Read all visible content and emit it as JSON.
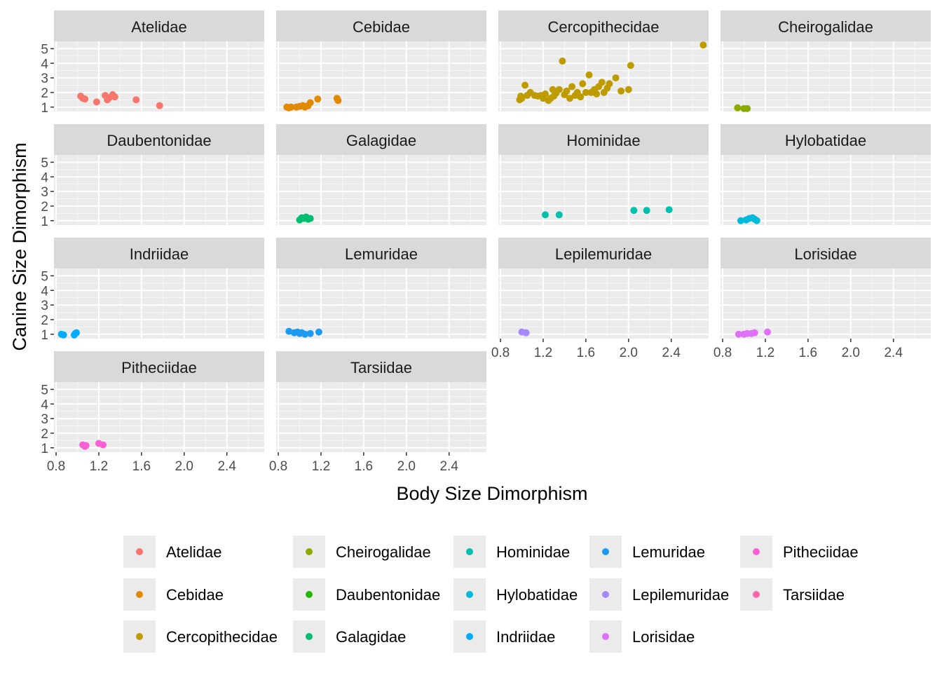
{
  "chart_data": {
    "type": "scatter",
    "facet": "family",
    "xlabel": "Body Size Dimorphism",
    "ylabel": "Canine Size Dimorphism",
    "xlim": [
      0.78,
      2.75
    ],
    "ylim": [
      0.7,
      5.5
    ],
    "x_ticks": [
      0.8,
      1.2,
      1.6,
      2.0,
      2.4
    ],
    "x_tick_labels": [
      "0.8",
      "1.2",
      "1.6",
      "2.0",
      "2.4"
    ],
    "y_ticks": [
      1,
      2,
      3,
      4,
      5
    ],
    "y_tick_labels": [
      "1",
      "2",
      "3",
      "4",
      "5"
    ],
    "grid": true,
    "legend_position": "bottom",
    "series": [
      {
        "name": "Atelidae",
        "color": "#F8766D",
        "points": [
          [
            1.03,
            1.75
          ],
          [
            1.05,
            1.6
          ],
          [
            1.07,
            1.55
          ],
          [
            1.18,
            1.35
          ],
          [
            1.26,
            1.8
          ],
          [
            1.28,
            1.5
          ],
          [
            1.3,
            1.65
          ],
          [
            1.33,
            1.85
          ],
          [
            1.35,
            1.7
          ],
          [
            1.55,
            1.5
          ],
          [
            1.77,
            1.1
          ]
        ]
      },
      {
        "name": "Cebidae",
        "color": "#E18A00",
        "points": [
          [
            0.88,
            1.0
          ],
          [
            0.9,
            0.95
          ],
          [
            0.92,
            1.0
          ],
          [
            0.97,
            1.0
          ],
          [
            1.0,
            1.05
          ],
          [
            1.03,
            1.1
          ],
          [
            1.05,
            1.0
          ],
          [
            1.08,
            1.1
          ],
          [
            1.1,
            1.3
          ],
          [
            1.17,
            1.55
          ],
          [
            1.35,
            1.6
          ],
          [
            1.36,
            1.45
          ]
        ]
      },
      {
        "name": "Cercopithecidae",
        "color": "#BE9C00",
        "points": [
          [
            0.98,
            1.5
          ],
          [
            0.99,
            1.75
          ],
          [
            1.0,
            1.6
          ],
          [
            1.03,
            2.5
          ],
          [
            1.05,
            1.8
          ],
          [
            1.08,
            2.0
          ],
          [
            1.12,
            1.8
          ],
          [
            1.15,
            1.75
          ],
          [
            1.18,
            1.8
          ],
          [
            1.2,
            1.6
          ],
          [
            1.22,
            1.9
          ],
          [
            1.25,
            1.45
          ],
          [
            1.27,
            1.6
          ],
          [
            1.29,
            2.2
          ],
          [
            1.3,
            1.75
          ],
          [
            1.32,
            1.95
          ],
          [
            1.35,
            2.2
          ],
          [
            1.38,
            4.15
          ],
          [
            1.4,
            1.85
          ],
          [
            1.42,
            2.1
          ],
          [
            1.45,
            1.6
          ],
          [
            1.47,
            2.4
          ],
          [
            1.5,
            1.8
          ],
          [
            1.52,
            2.0
          ],
          [
            1.55,
            1.7
          ],
          [
            1.57,
            2.6
          ],
          [
            1.6,
            2.0
          ],
          [
            1.63,
            3.2
          ],
          [
            1.65,
            2.0
          ],
          [
            1.68,
            2.2
          ],
          [
            1.7,
            1.9
          ],
          [
            1.72,
            2.4
          ],
          [
            1.75,
            2.7
          ],
          [
            1.77,
            2.0
          ],
          [
            1.8,
            2.3
          ],
          [
            1.82,
            2.6
          ],
          [
            1.88,
            3.0
          ],
          [
            1.93,
            2.1
          ],
          [
            2.0,
            2.2
          ],
          [
            2.02,
            3.85
          ],
          [
            2.7,
            5.25
          ]
        ]
      },
      {
        "name": "Cheirogalidae",
        "color": "#8CAB00",
        "points": [
          [
            0.94,
            0.95
          ],
          [
            1.0,
            0.9
          ],
          [
            1.03,
            0.9
          ]
        ]
      },
      {
        "name": "Daubentonidae",
        "color": "#24B700",
        "points": []
      },
      {
        "name": "Galagidae",
        "color": "#00BE70",
        "points": [
          [
            1.0,
            1.05
          ],
          [
            1.02,
            1.2
          ],
          [
            1.04,
            1.15
          ],
          [
            1.06,
            1.25
          ],
          [
            1.08,
            1.1
          ],
          [
            1.1,
            1.15
          ]
        ]
      },
      {
        "name": "Hominidae",
        "color": "#00C1AB",
        "points": [
          [
            1.22,
            1.4
          ],
          [
            1.35,
            1.4
          ],
          [
            2.05,
            1.7
          ],
          [
            2.17,
            1.7
          ],
          [
            2.38,
            1.75
          ]
        ]
      },
      {
        "name": "Hylobatidae",
        "color": "#00BBDA",
        "points": [
          [
            0.97,
            1.0
          ],
          [
            1.02,
            1.05
          ],
          [
            1.05,
            1.15
          ],
          [
            1.08,
            1.2
          ],
          [
            1.1,
            1.1
          ],
          [
            1.12,
            1.0
          ]
        ]
      },
      {
        "name": "Indriidae",
        "color": "#00ACFC",
        "points": [
          [
            0.85,
            1.0
          ],
          [
            0.87,
            0.95
          ],
          [
            0.97,
            0.95
          ],
          [
            0.98,
            1.05
          ],
          [
            0.99,
            1.1
          ]
        ]
      },
      {
        "name": "Lemuridae",
        "color": "#1B9BF0",
        "points": [
          [
            0.9,
            1.2
          ],
          [
            0.95,
            1.1
          ],
          [
            0.98,
            1.15
          ],
          [
            1.0,
            1.05
          ],
          [
            1.02,
            1.1
          ],
          [
            1.05,
            1.0
          ],
          [
            1.1,
            1.05
          ],
          [
            1.18,
            1.15
          ]
        ]
      },
      {
        "name": "Lepilemuridae",
        "color": "#A58AFF",
        "points": [
          [
            1.0,
            1.15
          ],
          [
            1.04,
            1.1
          ]
        ]
      },
      {
        "name": "Lorisidae",
        "color": "#DF70F8",
        "points": [
          [
            0.95,
            1.0
          ],
          [
            1.0,
            1.0
          ],
          [
            1.03,
            1.05
          ],
          [
            1.07,
            1.05
          ],
          [
            1.1,
            1.1
          ],
          [
            1.22,
            1.15
          ]
        ]
      },
      {
        "name": "Pitheciidae",
        "color": "#FB61D7",
        "points": [
          [
            1.05,
            1.2
          ],
          [
            1.07,
            1.1
          ],
          [
            1.08,
            1.15
          ],
          [
            1.2,
            1.3
          ],
          [
            1.24,
            1.2
          ]
        ]
      },
      {
        "name": "Tarsiidae",
        "color": "#FF66A8",
        "points": []
      }
    ]
  }
}
